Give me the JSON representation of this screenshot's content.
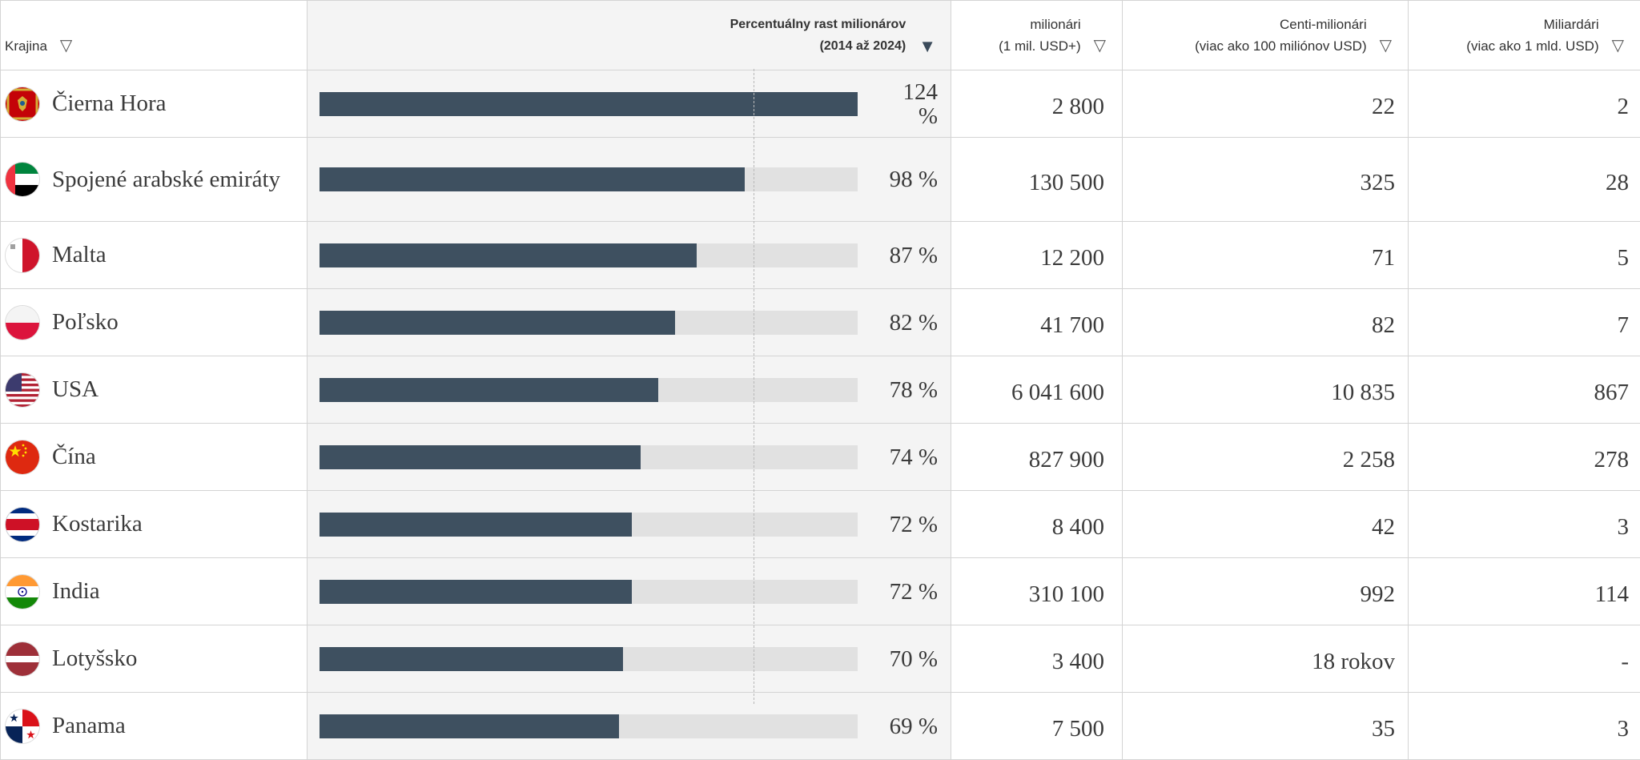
{
  "headers": {
    "country": "Krajina",
    "growth_line1": "Percentuálny rast milionárov",
    "growth_line2": "(2014 až 2024)",
    "millionaires_line1": "milionári",
    "millionaires_line2": "(1 mil. USD+)",
    "centi_line1": "Centi-milionári",
    "centi_line2": "(viac ako 100 miliónov USD)",
    "billionaires_line1": "Miliardári",
    "billionaires_line2": "(viac ako 1 mld. USD)"
  },
  "sort_icons": {
    "inactive": "▽",
    "active": "▼"
  },
  "colors": {
    "bar_fill": "#3e5060",
    "bar_track": "#e1e1e1",
    "highlight_column": "#f4f4f4"
  },
  "chart_data": {
    "type": "bar",
    "orientation": "horizontal",
    "xlim": [
      0,
      124
    ],
    "categories": [
      "Čierna Hora",
      "Spojené arabské emiráty",
      "Malta",
      "Poľsko",
      "USA",
      "Čína",
      "Kostarika",
      "India",
      "Lotyšsko",
      "Panama"
    ],
    "values": [
      124,
      98,
      87,
      82,
      78,
      74,
      72,
      72,
      70,
      69
    ]
  },
  "rows": [
    {
      "country": "Čierna Hora",
      "flag": "montenegro-flag",
      "growth": 124,
      "growth_label": "124 %",
      "millionaires": "2 800",
      "centi": "22",
      "billionaires": "2"
    },
    {
      "country": "Spojené arabské emiráty",
      "flag": "uae-flag",
      "growth": 98,
      "growth_label": "98 %",
      "millionaires": "130 500",
      "centi": "325",
      "billionaires": "28"
    },
    {
      "country": "Malta",
      "flag": "malta-flag",
      "growth": 87,
      "growth_label": "87 %",
      "millionaires": "12 200",
      "centi": "71",
      "billionaires": "5"
    },
    {
      "country": "Poľsko",
      "flag": "poland-flag",
      "growth": 82,
      "growth_label": "82 %",
      "millionaires": "41 700",
      "centi": "82",
      "billionaires": "7"
    },
    {
      "country": "USA",
      "flag": "usa-flag",
      "growth": 78,
      "growth_label": "78 %",
      "millionaires": "6 041 600",
      "centi": "10 835",
      "billionaires": "867"
    },
    {
      "country": "Čína",
      "flag": "china-flag",
      "growth": 74,
      "growth_label": "74 %",
      "millionaires": "827 900",
      "centi": "2 258",
      "billionaires": "278"
    },
    {
      "country": "Kostarika",
      "flag": "costa-rica-flag",
      "growth": 72,
      "growth_label": "72 %",
      "millionaires": "8 400",
      "centi": "42",
      "billionaires": "3"
    },
    {
      "country": "India",
      "flag": "india-flag",
      "growth": 72,
      "growth_label": "72 %",
      "millionaires": "310 100",
      "centi": "992",
      "billionaires": "114"
    },
    {
      "country": "Lotyšsko",
      "flag": "latvia-flag",
      "growth": 70,
      "growth_label": "70 %",
      "millionaires": "3 400",
      "centi": "18 rokov",
      "billionaires": "-"
    },
    {
      "country": "Panama",
      "flag": "panama-flag",
      "growth": 69,
      "growth_label": "69 %",
      "millionaires": "7 500",
      "centi": "35",
      "billionaires": "3"
    }
  ]
}
